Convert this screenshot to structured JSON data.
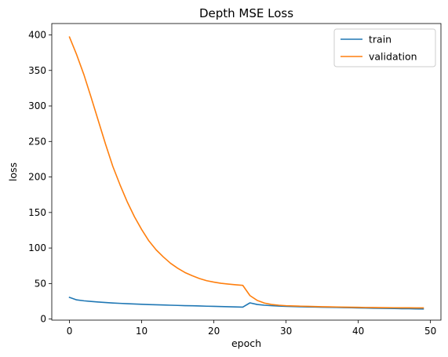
{
  "chart_data": {
    "type": "line",
    "title": "Depth MSE Loss",
    "xlabel": "epoch",
    "ylabel": "loss",
    "xlim": [
      -2.45,
      51.45
    ],
    "ylim": [
      -1.5,
      416
    ],
    "xticks": [
      0,
      10,
      20,
      30,
      40,
      50
    ],
    "yticks": [
      0,
      50,
      100,
      150,
      200,
      250,
      300,
      350,
      400
    ],
    "grid": false,
    "legend_position": "upper right",
    "x": [
      0,
      1,
      2,
      3,
      4,
      5,
      6,
      7,
      8,
      9,
      10,
      11,
      12,
      13,
      14,
      15,
      16,
      17,
      18,
      19,
      20,
      21,
      22,
      23,
      24,
      25,
      26,
      27,
      28,
      29,
      30,
      31,
      32,
      33,
      34,
      35,
      36,
      37,
      38,
      39,
      40,
      41,
      42,
      43,
      44,
      45,
      46,
      47,
      48,
      49
    ],
    "series": [
      {
        "name": "train",
        "color": "#1f77b4",
        "values": [
          30.5,
          27.0,
          25.7,
          24.8,
          24.0,
          23.3,
          22.6,
          22.1,
          21.6,
          21.2,
          20.8,
          20.4,
          20.1,
          19.8,
          19.5,
          19.2,
          18.9,
          18.7,
          18.4,
          18.1,
          17.9,
          17.6,
          17.3,
          17.1,
          16.8,
          22.8,
          20.5,
          19.5,
          18.8,
          18.3,
          17.9,
          17.6,
          17.3,
          17.1,
          16.9,
          16.7,
          16.5,
          16.3,
          16.1,
          15.9,
          15.7,
          15.5,
          15.3,
          15.1,
          15.0,
          14.8,
          14.6,
          14.5,
          14.3,
          14.2
        ]
      },
      {
        "name": "validation",
        "color": "#ff7f0e",
        "values": [
          397,
          372,
          344,
          312,
          279,
          246,
          215,
          189,
          165,
          144,
          126,
          110,
          97.5,
          87.5,
          78.5,
          71.5,
          65.5,
          61,
          57,
          54,
          52,
          50.3,
          49.2,
          48.3,
          47.5,
          33,
          26.3,
          22.5,
          20.5,
          19.5,
          18.8,
          18.4,
          18.1,
          17.9,
          17.6,
          17.4,
          17.2,
          17.0,
          16.8,
          16.6,
          16.5,
          16.3,
          16.2,
          16.1,
          16.0,
          15.9,
          15.8,
          15.8,
          15.7,
          15.7
        ]
      }
    ]
  }
}
